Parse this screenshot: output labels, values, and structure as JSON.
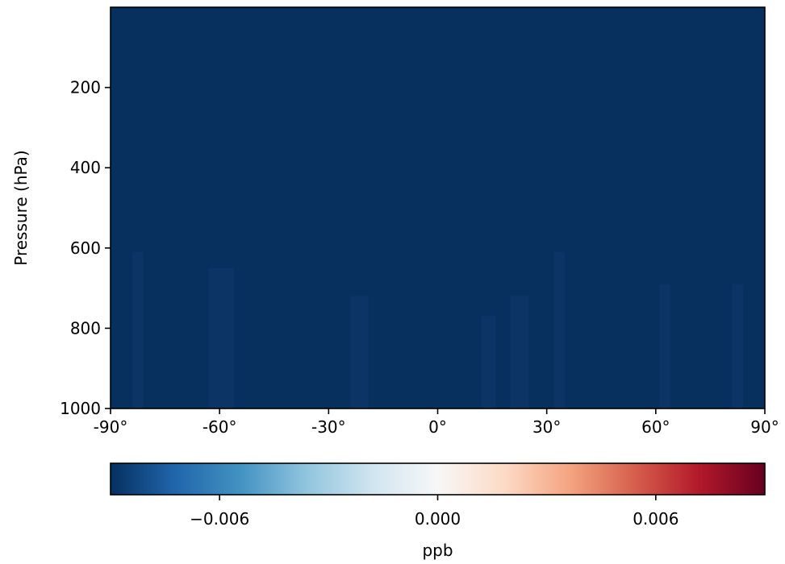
{
  "chart_data": {
    "type": "heatmap",
    "title": "",
    "xlabel": "",
    "ylabel": "Pressure (hPa)",
    "x_ticks": [
      {
        "value": -90,
        "label": "-90°"
      },
      {
        "value": -60,
        "label": "-60°"
      },
      {
        "value": -30,
        "label": "-30°"
      },
      {
        "value": 0,
        "label": "0°"
      },
      {
        "value": 30,
        "label": "30°"
      },
      {
        "value": 60,
        "label": "60°"
      },
      {
        "value": 90,
        "label": "90°"
      }
    ],
    "y_ticks": [
      {
        "value": 200,
        "label": "200"
      },
      {
        "value": 400,
        "label": "400"
      },
      {
        "value": 600,
        "label": "600"
      },
      {
        "value": 800,
        "label": "800"
      },
      {
        "value": 1000,
        "label": "1000"
      }
    ],
    "xlim": [
      -90,
      90
    ],
    "ylim": [
      1000,
      0
    ],
    "y_inverted": true,
    "grid": false,
    "field_value": -0.009,
    "field_color": "#08305f",
    "faint_columns": [
      {
        "lat_from": -84,
        "lat_to": -81,
        "p_top": 610,
        "p_bottom": 1000
      },
      {
        "lat_from": -63,
        "lat_to": -56,
        "p_top": 650,
        "p_bottom": 1000
      },
      {
        "lat_from": -24,
        "lat_to": -19,
        "p_top": 720,
        "p_bottom": 1000
      },
      {
        "lat_from": 12,
        "lat_to": 16,
        "p_top": 770,
        "p_bottom": 1000
      },
      {
        "lat_from": 20,
        "lat_to": 25,
        "p_top": 720,
        "p_bottom": 1000
      },
      {
        "lat_from": 32,
        "lat_to": 35,
        "p_top": 610,
        "p_bottom": 1000
      },
      {
        "lat_from": 61,
        "lat_to": 64,
        "p_top": 690,
        "p_bottom": 1000
      },
      {
        "lat_from": 81,
        "lat_to": 84,
        "p_top": 690,
        "p_bottom": 1000
      }
    ],
    "colorbar": {
      "label": "ppb",
      "vmin": -0.009,
      "vmax": 0.009,
      "ticks": [
        {
          "value": -0.006,
          "label": "−0.006"
        },
        {
          "value": 0.0,
          "label": "0.000"
        },
        {
          "value": 0.006,
          "label": "0.006"
        }
      ],
      "colormap": "RdBu_r",
      "stops": [
        "#053061",
        "#2166ac",
        "#4393c3",
        "#92c5de",
        "#d1e5f0",
        "#f7f7f7",
        "#fddbc7",
        "#f4a582",
        "#d6604d",
        "#b2182b",
        "#67001f"
      ]
    }
  }
}
